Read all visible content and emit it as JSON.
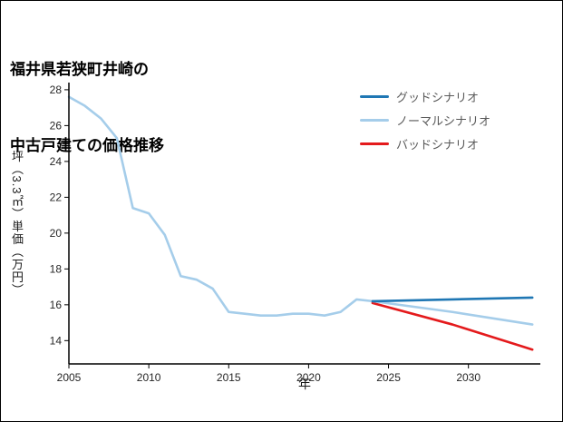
{
  "chart_data": {
    "type": "line",
    "title": "福井県若狭町井崎の中古戸建ての価格推移",
    "title_lines": [
      "福井県若狭町井崎の",
      "中古戸建ての価格推移"
    ],
    "xlabel": "年",
    "ylabel": "坪（3.3㎡）単価（万円）",
    "xlim": [
      2005,
      2034.5
    ],
    "ylim": [
      12.7,
      28.4
    ],
    "xticks": [
      2005,
      2010,
      2015,
      2020,
      2025,
      2030
    ],
    "yticks": [
      14,
      16,
      18,
      20,
      22,
      24,
      26,
      28
    ],
    "grid": false,
    "legend_position": "top-right",
    "legend": [
      {
        "label": "グッドシナリオ",
        "color": "#1f77b4"
      },
      {
        "label": "ノーマルシナリオ",
        "color": "#a5cdea"
      },
      {
        "label": "バッドシナリオ",
        "color": "#e41a1c"
      }
    ],
    "series": [
      {
        "name": "historical",
        "color": "#a5cdea",
        "x": [
          2005,
          2006,
          2007,
          2008,
          2009,
          2010,
          2011,
          2012,
          2013,
          2014,
          2015,
          2016,
          2017,
          2018,
          2019,
          2020,
          2021,
          2022,
          2023,
          2024
        ],
        "y": [
          27.6,
          27.1,
          26.4,
          25.3,
          21.4,
          21.1,
          19.9,
          17.6,
          17.4,
          16.9,
          15.6,
          15.5,
          15.4,
          15.4,
          15.5,
          15.5,
          15.4,
          15.6,
          16.3,
          16.2
        ]
      },
      {
        "name": "bad-scenario",
        "color": "#e41a1c",
        "x": [
          2024,
          2029,
          2034
        ],
        "y": [
          16.1,
          14.9,
          13.5
        ]
      },
      {
        "name": "normal-scenario",
        "color": "#a5cdea",
        "x": [
          2024,
          2029,
          2034
        ],
        "y": [
          16.2,
          15.6,
          14.9
        ]
      },
      {
        "name": "good-scenario",
        "color": "#1f77b4",
        "x": [
          2024,
          2029,
          2034
        ],
        "y": [
          16.2,
          16.3,
          16.4
        ]
      }
    ]
  }
}
